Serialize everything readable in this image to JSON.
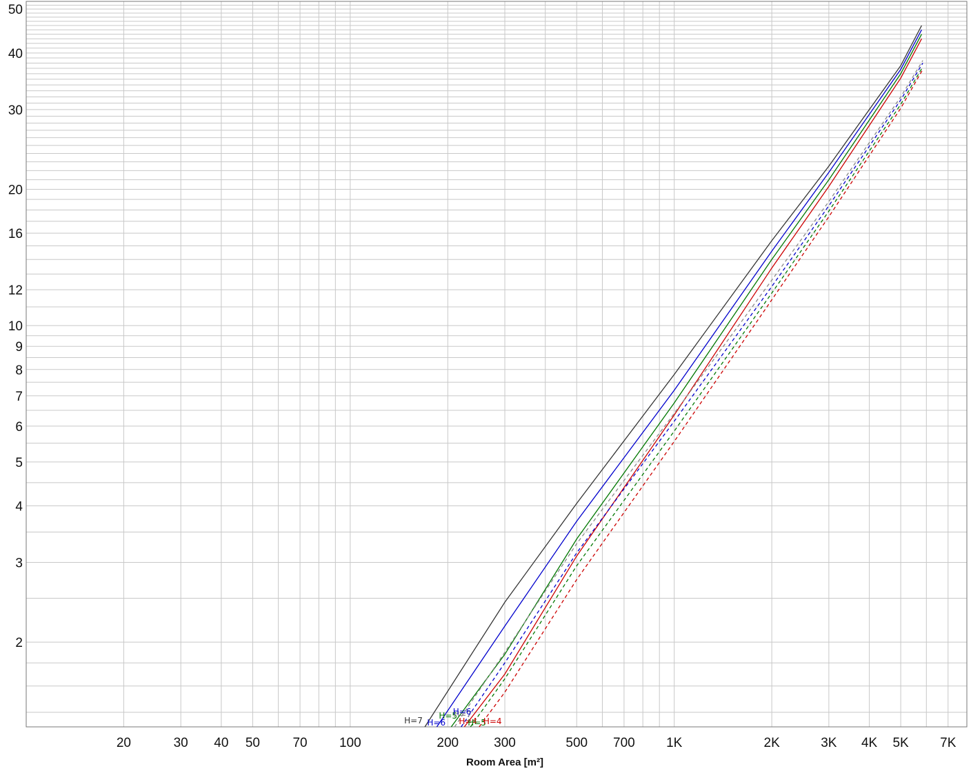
{
  "chart_data": {
    "type": "line",
    "title": "",
    "xlabel": "Room Area [m²]",
    "ylabel": "",
    "xscale": "log",
    "yscale": "log",
    "xlim": [
      10,
      8000
    ],
    "ylim": [
      1.3,
      52
    ],
    "grid": true,
    "x_tick_values": [
      20,
      30,
      40,
      50,
      70,
      100,
      200,
      300,
      500,
      700,
      1000,
      2000,
      3000,
      4000,
      5000,
      7000
    ],
    "x_tick_labels": [
      "20",
      "30",
      "40",
      "50",
      "70",
      "100",
      "200",
      "300",
      "500",
      "700",
      "1K",
      "2K",
      "3K",
      "4K",
      "5K",
      "7K"
    ],
    "y_tick_values": [
      2,
      3,
      4,
      5,
      6,
      7,
      8,
      9,
      10,
      12,
      16,
      20,
      30,
      40,
      50
    ],
    "y_tick_labels": [
      "2",
      "3",
      "4",
      "5",
      "6",
      "7",
      "8",
      "9",
      "10",
      "12",
      "16",
      "20",
      "30",
      "40",
      "50"
    ],
    "series": [
      {
        "name": "H=7",
        "color": "#333333",
        "dash": false,
        "x": [
          170,
          300,
          500,
          1000,
          2000,
          3000,
          5000,
          5800
        ],
        "y": [
          1.3,
          2.45,
          4.05,
          7.8,
          15.4,
          22.5,
          37.5,
          46
        ]
      },
      {
        "name": "H=6",
        "color": "#0000cc",
        "dash": false,
        "x": [
          185,
          300,
          500,
          1000,
          2000,
          3000,
          5000,
          5800
        ],
        "y": [
          1.3,
          2.17,
          3.7,
          7.2,
          14.6,
          21.8,
          36.8,
          45
        ]
      },
      {
        "name": "H=5",
        "color": "#007700",
        "dash": false,
        "x": [
          205,
          300,
          500,
          1000,
          2000,
          3000,
          5000,
          5800
        ],
        "y": [
          1.3,
          1.88,
          3.38,
          6.75,
          14.0,
          21.0,
          36.0,
          44
        ]
      },
      {
        "name": "H=4",
        "color": "#cc0000",
        "dash": false,
        "x": [
          225,
          300,
          500,
          1000,
          2000,
          3000,
          5000,
          5800
        ],
        "y": [
          1.3,
          1.7,
          3.1,
          6.35,
          13.4,
          20.3,
          35.2,
          43
        ]
      },
      {
        "name": "H=7",
        "color": "#888888",
        "dash": true,
        "x": [
          210,
          300,
          500,
          1000,
          2000,
          3000,
          5000,
          5850
        ],
        "y": [
          1.3,
          1.9,
          3.3,
          6.4,
          12.6,
          18.8,
          32.0,
          38.5
        ]
      },
      {
        "name": "H=6",
        "color": "#0000cc",
        "dash": true,
        "x": [
          220,
          300,
          500,
          1000,
          2000,
          3000,
          5000,
          5850
        ],
        "y": [
          1.3,
          1.8,
          3.15,
          6.15,
          12.2,
          18.4,
          31.5,
          38.0
        ]
      },
      {
        "name": "H=5",
        "color": "#007700",
        "dash": true,
        "x": [
          235,
          300,
          500,
          1000,
          2000,
          3000,
          5000,
          5850
        ],
        "y": [
          1.3,
          1.66,
          2.95,
          5.85,
          11.8,
          17.9,
          30.8,
          37.3
        ]
      },
      {
        "name": "H=4",
        "color": "#cc0000",
        "dash": true,
        "x": [
          250,
          300,
          500,
          1000,
          2000,
          3000,
          5000,
          5850
        ],
        "y": [
          1.3,
          1.55,
          2.75,
          5.55,
          11.4,
          17.4,
          30.2,
          36.8
        ]
      }
    ]
  }
}
